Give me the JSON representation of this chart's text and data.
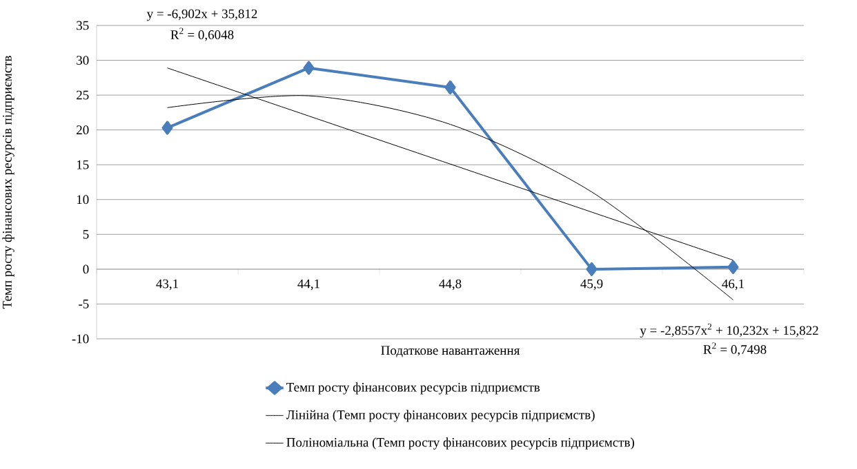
{
  "chart_data": {
    "type": "line",
    "xlabel": "Податкове навантаження",
    "ylabel": "Темп росту фінансових ресурсів підприємств",
    "categories": [
      "43,1",
      "44,1",
      "44,8",
      "45,9",
      "46,1"
    ],
    "series": [
      {
        "name": "Темп росту фінансових ресурсів підприємств",
        "color": "#4a7ebb",
        "marker": "diamond",
        "values": [
          20.3,
          28.9,
          26.1,
          0.0,
          0.3
        ]
      },
      {
        "name": "Лінійна (Темп росту фінансових ресурсів підприємств)",
        "color": "#000000",
        "marker": "none",
        "values": [
          28.9,
          22.0,
          15.1,
          8.2,
          1.3
        ]
      },
      {
        "name": "Поліноміальна (Темп росту фінансових ресурсів підприємств)",
        "color": "#000000",
        "marker": "none",
        "values": [
          23.2,
          24.9,
          20.8,
          11.1,
          -4.4
        ]
      }
    ],
    "ylim": [
      -10,
      35
    ],
    "yticks": [
      -10,
      -5,
      0,
      5,
      10,
      15,
      20,
      25,
      30,
      35
    ],
    "grid": "y",
    "legend": "bottom",
    "annotations": [
      "y = -6,902x + 35,812",
      "R$^{2}$ = 0,6048",
      "y = -2,8557x$^{2}$ + 10,232x + 15,822",
      "R$^{2}$ = 0,7498"
    ]
  }
}
